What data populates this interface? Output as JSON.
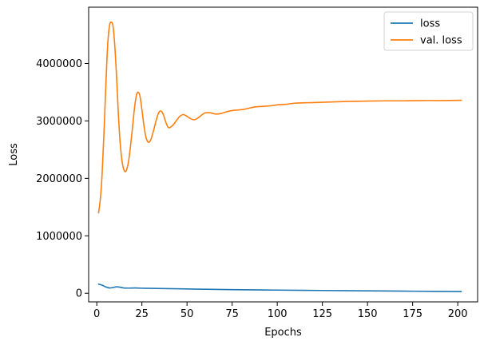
{
  "chart_data": {
    "type": "line",
    "xlabel": "Epochs",
    "ylabel": "Loss",
    "xlim": [
      -4.5,
      211
    ],
    "ylim": [
      -150000,
      4980000
    ],
    "xticks": [
      0,
      25,
      50,
      75,
      100,
      125,
      150,
      175,
      200
    ],
    "yticks": [
      0,
      1000000,
      2000000,
      3000000,
      4000000
    ],
    "ytick_labels": [
      "0",
      "1000000",
      "2000000",
      "3000000",
      "4000000"
    ],
    "legend_position": "top-right",
    "grid": false,
    "series": [
      {
        "name": "loss",
        "color": "#1f77b4",
        "x": [
          1,
          3,
          5,
          7,
          9,
          11,
          13,
          15,
          18,
          21,
          25,
          30,
          40,
          50,
          60,
          75,
          100,
          125,
          150,
          175,
          202
        ],
        "y": [
          160000,
          140000,
          110000,
          92000,
          100000,
          112000,
          105000,
          92000,
          90000,
          92000,
          88000,
          85000,
          80000,
          75000,
          70000,
          63000,
          55000,
          48000,
          42000,
          36000,
          30000
        ]
      },
      {
        "name": "val. loss",
        "color": "#ff7f0e",
        "x": [
          1,
          2,
          3,
          4,
          5,
          6,
          7,
          8,
          9,
          10,
          11,
          12,
          13,
          14,
          15,
          16,
          17,
          18,
          19,
          20,
          21,
          22,
          23,
          24,
          25,
          26,
          27,
          28,
          29,
          30,
          31,
          32,
          33,
          34,
          35,
          36,
          37,
          38,
          39,
          40,
          42,
          44,
          46,
          48,
          50,
          52,
          54,
          56,
          58,
          60,
          63,
          66,
          69,
          72,
          75,
          78,
          81,
          84,
          87,
          90,
          95,
          100,
          105,
          110,
          120,
          130,
          140,
          150,
          160,
          170,
          180,
          190,
          202
        ],
        "y": [
          1400000,
          1650000,
          2100000,
          2800000,
          3600000,
          4300000,
          4650000,
          4720000,
          4650000,
          4300000,
          3750000,
          3100000,
          2600000,
          2300000,
          2150000,
          2120000,
          2200000,
          2380000,
          2650000,
          2950000,
          3250000,
          3450000,
          3500000,
          3420000,
          3200000,
          2950000,
          2750000,
          2650000,
          2630000,
          2680000,
          2780000,
          2900000,
          3020000,
          3120000,
          3170000,
          3160000,
          3100000,
          3000000,
          2920000,
          2880000,
          2920000,
          3000000,
          3080000,
          3110000,
          3080000,
          3040000,
          3020000,
          3050000,
          3100000,
          3140000,
          3140000,
          3120000,
          3130000,
          3160000,
          3180000,
          3190000,
          3200000,
          3220000,
          3240000,
          3250000,
          3260000,
          3280000,
          3290000,
          3310000,
          3320000,
          3330000,
          3340000,
          3345000,
          3350000,
          3350000,
          3355000,
          3355000,
          3360000
        ]
      }
    ]
  }
}
